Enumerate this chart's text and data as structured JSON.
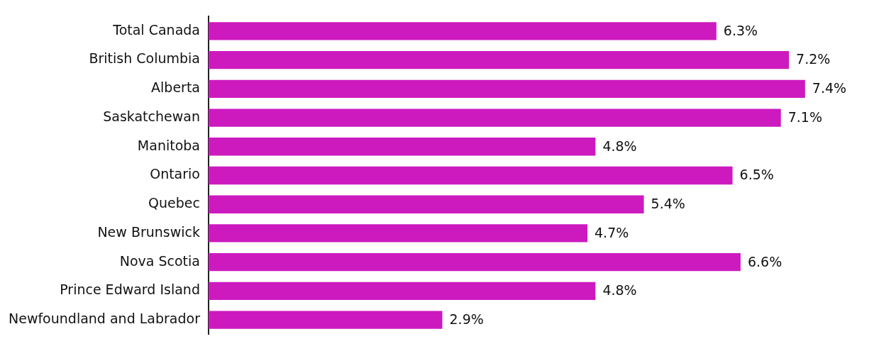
{
  "chart_data": {
    "type": "bar",
    "orientation": "horizontal",
    "categories": [
      "Total Canada",
      "British Columbia",
      "Alberta",
      "Saskatchewan",
      "Manitoba",
      "Ontario",
      "Quebec",
      "New Brunswick",
      "Nova Scotia",
      "Prince Edward Island",
      "Newfoundland and Labrador"
    ],
    "values": [
      6.3,
      7.2,
      7.4,
      7.1,
      4.8,
      6.5,
      5.4,
      4.7,
      6.6,
      4.8,
      2.9
    ],
    "value_labels": [
      "6.3%",
      "7.2%",
      "7.4%",
      "7.1%",
      "4.8%",
      "6.5%",
      "5.4%",
      "4.7%",
      "6.6%",
      "4.8%",
      "2.9%"
    ],
    "color": "#cc1abf",
    "legend": false
  }
}
